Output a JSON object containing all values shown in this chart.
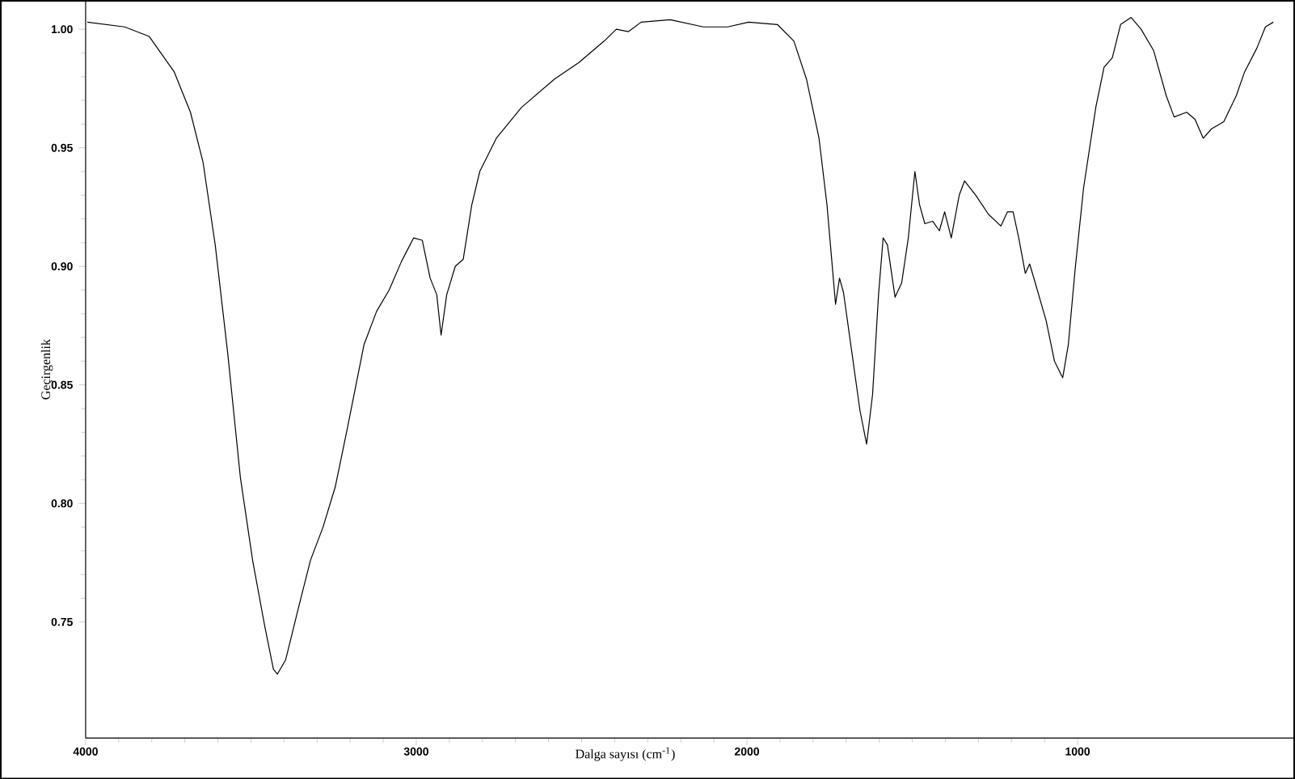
{
  "chart_data": {
    "type": "line",
    "xlabel": "Dalga sayısı (cm$^{-1}$)",
    "ylabel": "Geçirgenlik",
    "xlim": [
      4000,
      345
    ],
    "ylim": [
      0.701,
      1.012
    ],
    "xticks": [
      4000,
      3000,
      2000,
      1000
    ],
    "yticks": [
      {
        "value": 0.75,
        "label": "0.75"
      },
      {
        "value": 0.8,
        "label": "0.80"
      },
      {
        "value": 0.85,
        "label": "0.85"
      },
      {
        "value": 0.9,
        "label": "0.90"
      },
      {
        "value": 0.95,
        "label": "0.95"
      },
      {
        "value": 1.0,
        "label": "1.00"
      }
    ],
    "grid": false,
    "legend": false,
    "marker": "none",
    "line_style": "solid",
    "series": [
      {
        "color": "#000000",
        "x": [
          3995,
          3882,
          3808,
          3732,
          3683,
          3645,
          3608,
          3570,
          3532,
          3495,
          3458,
          3432,
          3420,
          3395,
          3358,
          3320,
          3282,
          3245,
          3208,
          3158,
          3120,
          3082,
          3045,
          3008,
          2982,
          2958,
          2938,
          2925,
          2908,
          2882,
          2858,
          2832,
          2808,
          2758,
          2682,
          2582,
          2508,
          2432,
          2395,
          2358,
          2320,
          2232,
          2132,
          2058,
          1995,
          1908,
          1858,
          1820,
          1782,
          1758,
          1732,
          1720,
          1708,
          1682,
          1658,
          1638,
          1620,
          1602,
          1588,
          1575,
          1552,
          1532,
          1512,
          1492,
          1478,
          1462,
          1438,
          1418,
          1402,
          1382,
          1358,
          1342,
          1308,
          1270,
          1232,
          1212,
          1195,
          1178,
          1158,
          1145,
          1128,
          1095,
          1070,
          1045,
          1028,
          1008,
          982,
          945,
          920,
          895,
          870,
          838,
          808,
          770,
          732,
          708,
          670,
          645,
          620,
          595,
          558,
          520,
          495,
          458,
          432,
          408
        ],
        "values": [
          1.003,
          1.001,
          0.997,
          0.982,
          0.965,
          0.944,
          0.909,
          0.863,
          0.811,
          0.776,
          0.748,
          0.73,
          0.728,
          0.734,
          0.755,
          0.776,
          0.79,
          0.807,
          0.832,
          0.867,
          0.881,
          0.89,
          0.902,
          0.912,
          0.911,
          0.895,
          0.888,
          0.871,
          0.888,
          0.9,
          0.903,
          0.926,
          0.94,
          0.954,
          0.967,
          0.979,
          0.986,
          0.995,
          1.0,
          0.999,
          1.003,
          1.004,
          1.001,
          1.001,
          1.003,
          1.002,
          0.995,
          0.979,
          0.954,
          0.926,
          0.884,
          0.895,
          0.889,
          0.863,
          0.839,
          0.825,
          0.846,
          0.888,
          0.912,
          0.909,
          0.887,
          0.893,
          0.912,
          0.94,
          0.926,
          0.918,
          0.919,
          0.915,
          0.923,
          0.912,
          0.93,
          0.936,
          0.93,
          0.922,
          0.917,
          0.923,
          0.923,
          0.912,
          0.897,
          0.901,
          0.893,
          0.877,
          0.86,
          0.853,
          0.867,
          0.898,
          0.933,
          0.967,
          0.984,
          0.988,
          1.002,
          1.005,
          1.0,
          0.991,
          0.972,
          0.963,
          0.965,
          0.962,
          0.954,
          0.958,
          0.961,
          0.972,
          0.982,
          0.992,
          1.001,
          1.003
        ]
      }
    ]
  }
}
